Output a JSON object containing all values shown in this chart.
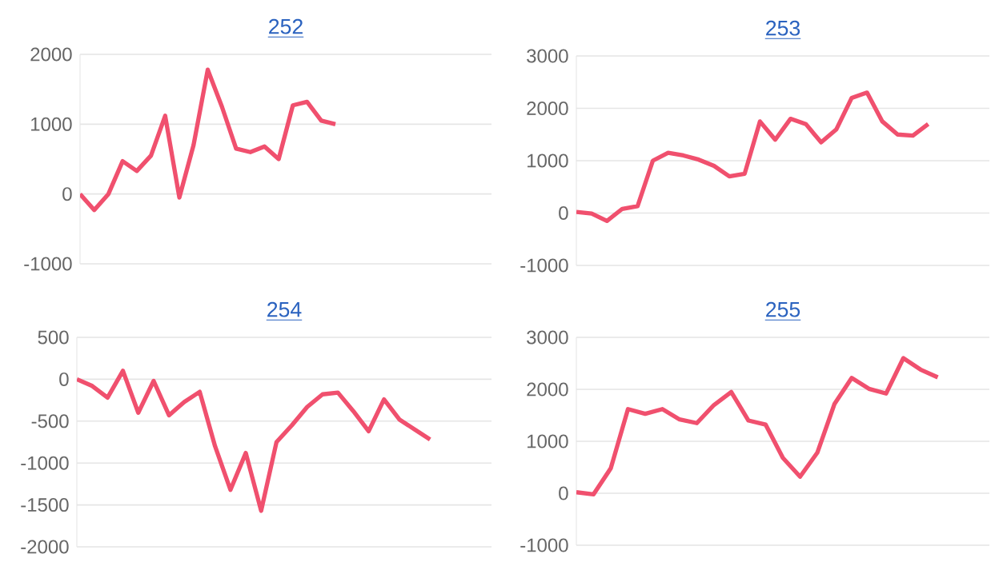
{
  "chart_data": [
    {
      "type": "line",
      "title": "252",
      "categories": [
        null,
        null,
        null,
        null,
        null,
        null,
        null,
        null,
        null,
        null,
        null,
        null,
        null,
        null,
        null,
        null,
        null,
        null,
        null,
        null,
        null,
        null,
        null,
        null,
        null,
        null,
        null,
        null,
        null,
        null
      ],
      "values": [
        0,
        -230,
        0,
        470,
        330,
        550,
        1120,
        -50,
        700,
        1780,
        1250,
        650,
        600,
        680,
        500,
        1270,
        1320,
        1050,
        1000,
        null,
        null,
        null,
        null,
        null,
        null,
        null,
        null,
        null,
        null,
        null
      ],
      "color": "#f0506e",
      "ylim": [
        -1000,
        2000
      ],
      "yticks": [
        -1000,
        0,
        1000,
        2000
      ],
      "grid": "y",
      "tick_labels": "y"
    },
    {
      "type": "line",
      "title": "253",
      "categories": [
        null,
        null,
        null,
        null,
        null,
        null,
        null,
        null,
        null,
        null,
        null,
        null,
        null,
        null,
        null,
        null,
        null,
        null,
        null,
        null,
        null,
        null,
        null,
        null,
        null,
        null,
        null,
        null
      ],
      "values": [
        20,
        -10,
        -150,
        80,
        130,
        1000,
        1150,
        1100,
        1020,
        900,
        700,
        750,
        1750,
        1400,
        1800,
        1700,
        1350,
        1600,
        2200,
        2300,
        1750,
        1500,
        1480,
        1700,
        null,
        null,
        null,
        null
      ],
      "color": "#f0506e",
      "ylim": [
        -1000,
        3000
      ],
      "yticks": [
        -1000,
        0,
        1000,
        2000,
        3000
      ],
      "grid": "y",
      "tick_labels": "y"
    },
    {
      "type": "line",
      "title": "254",
      "categories": [
        null,
        null,
        null,
        null,
        null,
        null,
        null,
        null,
        null,
        null,
        null,
        null,
        null,
        null,
        null,
        null,
        null,
        null,
        null,
        null,
        null,
        null,
        null,
        null,
        null,
        null,
        null,
        null
      ],
      "values": [
        0,
        -80,
        -220,
        100,
        -400,
        -20,
        -430,
        -270,
        -150,
        -800,
        -1320,
        -880,
        -1570,
        -750,
        -550,
        -330,
        -180,
        -160,
        -380,
        -620,
        -240,
        -480,
        -600,
        -720,
        null,
        null,
        null,
        null
      ],
      "color": "#f0506e",
      "ylim": [
        -2000,
        500
      ],
      "yticks": [
        -2000,
        -1500,
        -1000,
        -500,
        0,
        500
      ],
      "grid": "y",
      "tick_labels": "y"
    },
    {
      "type": "line",
      "title": "255",
      "categories": [
        null,
        null,
        null,
        null,
        null,
        null,
        null,
        null,
        null,
        null,
        null,
        null,
        null,
        null,
        null,
        null,
        null,
        null,
        null,
        null,
        null,
        null,
        null,
        null,
        null
      ],
      "values": [
        20,
        -20,
        480,
        1620,
        1530,
        1620,
        1420,
        1350,
        1700,
        1950,
        1400,
        1320,
        680,
        320,
        780,
        1720,
        2220,
        2010,
        1920,
        2600,
        2380,
        2230,
        null,
        null,
        null
      ],
      "color": "#f0506e",
      "ylim": [
        -1000,
        3000
      ],
      "yticks": [
        -1000,
        0,
        1000,
        2000,
        3000
      ],
      "grid": "y",
      "tick_labels": "y"
    }
  ]
}
